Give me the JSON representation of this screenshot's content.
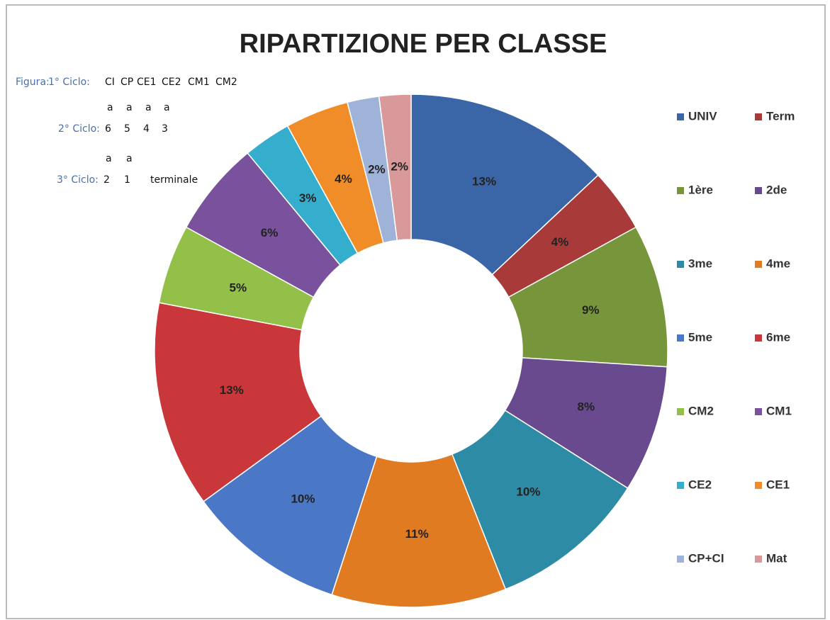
{
  "chart_data": {
    "type": "donut",
    "title": "RIPARTIZIONE PER CLASSE",
    "categories": [
      "UNIV",
      "Term",
      "1ère",
      "2de",
      "3me",
      "4me",
      "5me",
      "6me",
      "CM2",
      "CM1",
      "CE2",
      "CE1",
      "CP+CI",
      "Mat"
    ],
    "values": [
      13,
      4,
      9,
      8,
      10,
      11,
      10,
      13,
      5,
      6,
      3,
      4,
      2,
      2
    ],
    "value_labels": [
      "13%",
      "4%",
      "9%",
      "8%",
      "10%",
      "11%",
      "10%",
      "13%",
      "5%",
      "6%",
      "3%",
      "4%",
      "2%",
      "2%"
    ],
    "colors": [
      "#3a66a8",
      "#a83a3a",
      "#77963c",
      "#6a4a8e",
      "#2e8ba6",
      "#e07b22",
      "#4a78c6",
      "#c9373a",
      "#93c048",
      "#7a519c",
      "#35aecd",
      "#f08d28",
      "#9fb3d8",
      "#d9999a"
    ],
    "legend": "right",
    "annotations": {
      "label": "Figura:",
      "cycles": [
        {
          "name": "1° Ciclo:",
          "items": [
            "CI",
            "CP",
            "CE1",
            "CE2",
            "CM1",
            "CM2"
          ]
        },
        {
          "name": "2° Ciclo:",
          "items": [
            "6",
            "5",
            "4",
            "3"
          ],
          "sup": [
            "a",
            "a",
            "a",
            "a"
          ]
        },
        {
          "name": "3° Ciclo:",
          "items": [
            "2",
            "1",
            "terminale"
          ],
          "sup": [
            "a",
            "a"
          ]
        }
      ]
    }
  }
}
